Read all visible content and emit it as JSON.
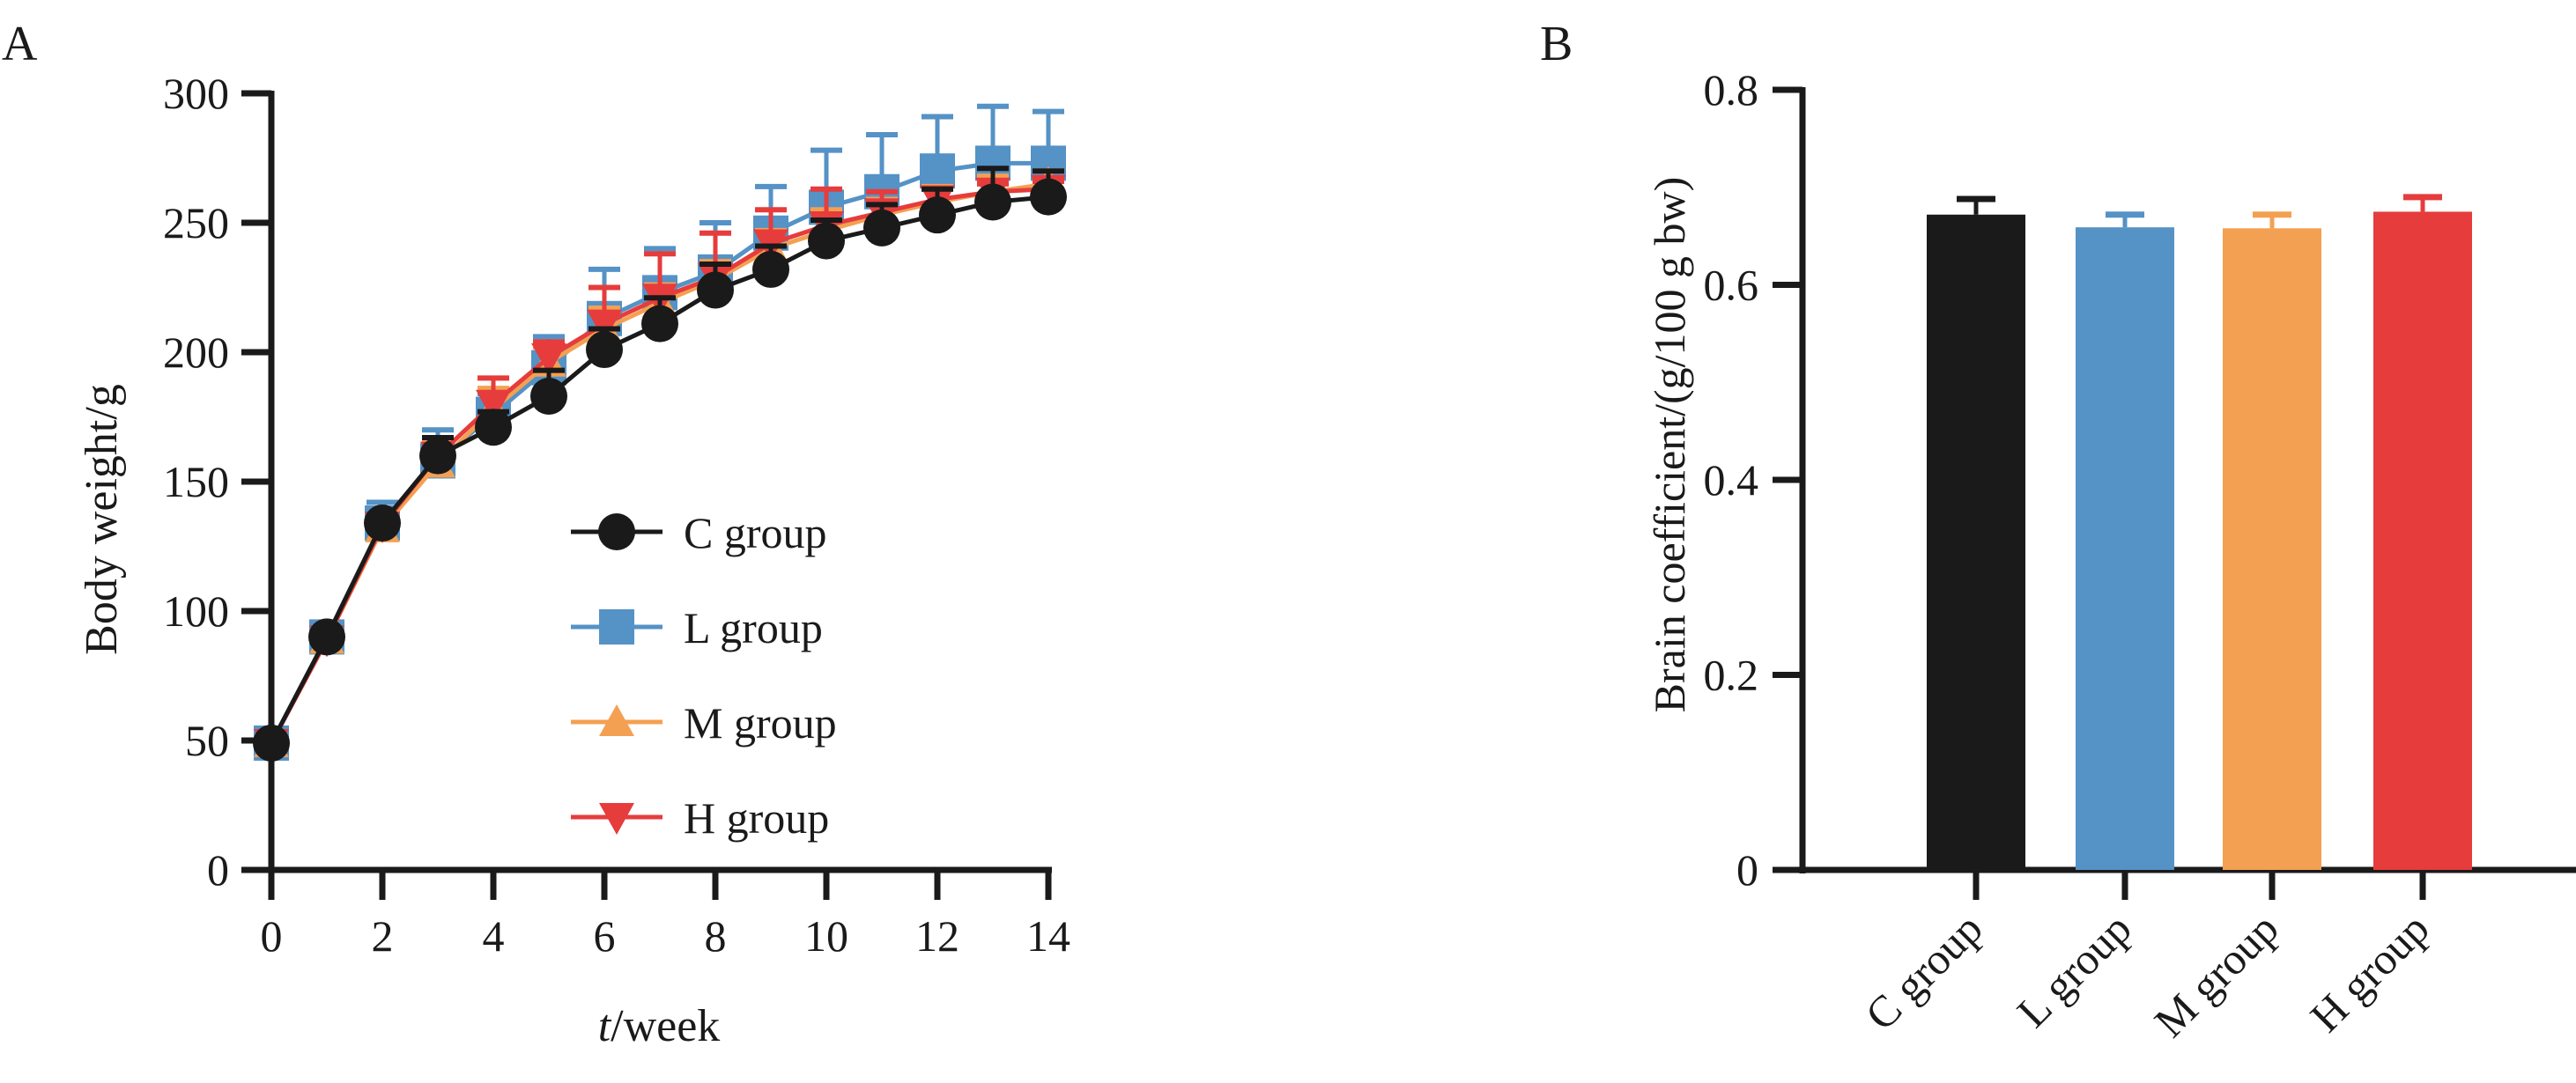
{
  "chart_data": [
    {
      "panel_label": "A",
      "type": "line",
      "title": "",
      "xlabel_italic": "t",
      "xlabel_rest": "/week",
      "ylabel": "Body weight/g",
      "xlim": [
        0,
        14
      ],
      "ylim": [
        0,
        300
      ],
      "x_ticks": [
        0,
        2,
        4,
        6,
        8,
        10,
        12,
        14
      ],
      "y_ticks": [
        0,
        50,
        100,
        150,
        200,
        250,
        300
      ],
      "grid": false,
      "legend_position": "center-right inside plot",
      "x": [
        0,
        1,
        2,
        3,
        4,
        5,
        6,
        7,
        8,
        9,
        10,
        11,
        12,
        13,
        14
      ],
      "series": [
        {
          "name": "C group",
          "marker": "circle",
          "color": "#1a1a1a",
          "values": [
            49,
            90,
            134,
            160,
            171,
            183,
            201,
            211,
            224,
            232,
            243,
            248,
            253,
            258,
            260
          ],
          "error_upper": [
            50,
            91,
            136,
            167,
            177,
            193,
            209,
            221,
            234,
            241,
            251,
            257,
            263,
            271,
            270
          ]
        },
        {
          "name": "L group",
          "marker": "square",
          "color": "#5592c6",
          "values": [
            49,
            90,
            134,
            158,
            176,
            194,
            213,
            223,
            231,
            246,
            256,
            262,
            270,
            273,
            273
          ],
          "error_upper": [
            50,
            92,
            142,
            170,
            184,
            206,
            232,
            240,
            250,
            264,
            278,
            284,
            291,
            295,
            293
          ]
        },
        {
          "name": "M group",
          "marker": "triangle-up",
          "color": "#f4a052",
          "values": [
            49,
            89,
            132,
            157,
            178,
            196,
            209,
            219,
            228,
            240,
            247,
            253,
            258,
            262,
            265
          ],
          "error_upper": [
            50,
            90,
            135,
            166,
            186,
            202,
            217,
            226,
            235,
            247,
            255,
            259,
            264,
            268,
            270
          ]
        },
        {
          "name": "H group",
          "marker": "triangle-down",
          "color": "#e63c3c",
          "values": [
            49,
            89,
            133,
            160,
            180,
            198,
            211,
            221,
            229,
            242,
            249,
            254,
            259,
            262,
            263
          ],
          "error_upper": [
            50,
            90,
            135,
            167,
            190,
            204,
            225,
            238,
            246,
            255,
            263,
            262,
            263,
            265,
            266
          ]
        }
      ]
    },
    {
      "panel_label": "B",
      "type": "bar",
      "title": "",
      "xlabel": "",
      "ylabel": "Brain coefficient/(g/100 g bw)",
      "ylim": [
        0,
        0.8
      ],
      "y_ticks": [
        "0",
        "0.2",
        "0.4",
        "0.6",
        "0.8"
      ],
      "y_tick_values": [
        0,
        0.2,
        0.4,
        0.6,
        0.8
      ],
      "grid": false,
      "categories": [
        "C group",
        "L group",
        "M group",
        "H group"
      ],
      "values": [
        0.672,
        0.659,
        0.658,
        0.675
      ],
      "error_upper": [
        0.688,
        0.672,
        0.672,
        0.69
      ],
      "colors": [
        "#1a1a1a",
        "#5592c6",
        "#f4a052",
        "#e63c3c"
      ]
    }
  ]
}
